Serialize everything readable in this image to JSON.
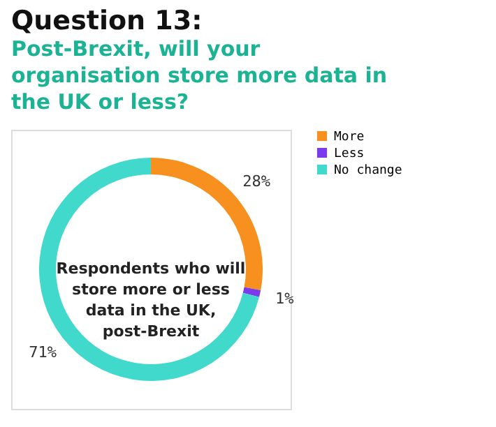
{
  "chart_data": {
    "type": "donut",
    "title": "Question 13:",
    "subtitle": "Post-Brexit, will your organisation store more data in the UK or less?",
    "categories": [
      "More",
      "Less",
      "No change"
    ],
    "values": [
      28,
      1,
      71
    ],
    "colors": [
      "#f7901e",
      "#7c3aed",
      "#40d9cc"
    ],
    "value_labels": [
      "28%",
      "1%",
      "71%"
    ],
    "annotations": [
      "Respondents who will store more or less data in the UK, post-Brexit"
    ],
    "legend": "right"
  }
}
